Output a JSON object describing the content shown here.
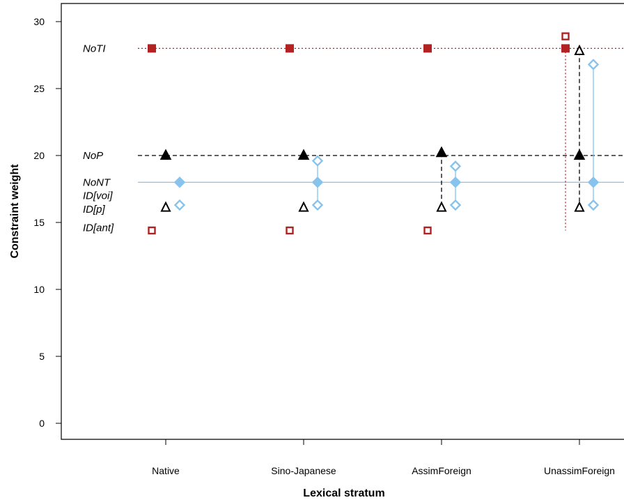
{
  "chart_data": {
    "type": "scatter",
    "xlabel": "Lexical stratum",
    "ylabel": "Constraint weight",
    "ylim": [
      0,
      30
    ],
    "yticks": [
      0,
      5,
      10,
      15,
      20,
      25,
      30
    ],
    "categories": [
      "Native",
      "Sino-Japanese",
      "AssimForeign",
      "UnassimForeign"
    ],
    "grid": false,
    "series": [
      {
        "name": "NoTI",
        "color": "#b22222",
        "baseline": 28.0,
        "baseline_style": "dotted",
        "filled_values": [
          28.0,
          28.0,
          28.0,
          28.0
        ],
        "open_values": [
          14.4,
          14.4,
          14.4,
          28.9
        ],
        "marker": "square",
        "offset": -0.1
      },
      {
        "name": "NoP",
        "color": "#000000",
        "baseline": 20.0,
        "baseline_style": "dashed",
        "filled_values": [
          20.0,
          20.0,
          20.2,
          20.0
        ],
        "open_values": [
          16.1,
          16.1,
          16.1,
          16.1
        ],
        "marker": "triangle",
        "offset": 0.0
      },
      {
        "name": "NoNT",
        "color": "#87c3ec",
        "baseline": 18.0,
        "baseline_style": "solid",
        "filled_values": [
          18.0,
          18.0,
          18.0,
          18.0
        ],
        "open_values": [
          16.3,
          16.3,
          16.3,
          16.3
        ],
        "open_values_2": [
          null,
          19.6,
          19.2,
          26.8
        ],
        "marker": "diamond",
        "offset": 0.1
      }
    ],
    "labels": [
      {
        "text": "NoTI",
        "y": 28.0
      },
      {
        "text": "NoP",
        "y": 20.0
      },
      {
        "text": "NoNT",
        "y": 18.0
      },
      {
        "text": "ID[voi]",
        "y": 17.0
      },
      {
        "text": "ID[p]",
        "y": 16.0
      },
      {
        "text": "ID[ant]",
        "y": 14.6
      }
    ]
  }
}
